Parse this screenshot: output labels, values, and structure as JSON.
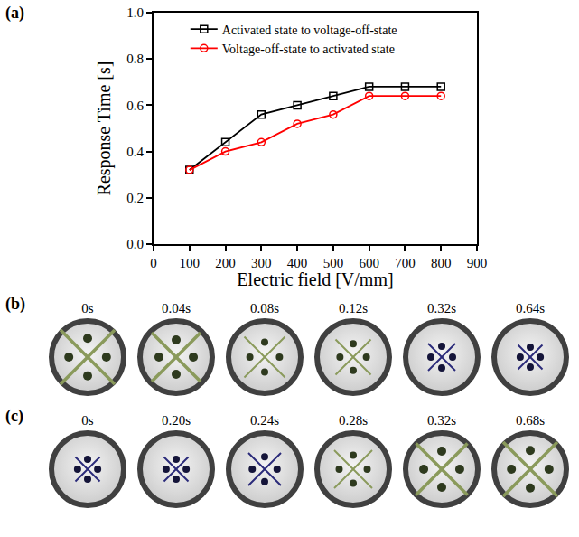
{
  "chart_data": {
    "type": "line",
    "x": [
      100,
      200,
      300,
      400,
      500,
      600,
      700,
      800
    ],
    "series": [
      {
        "name": "Activated state to voltage-off-state",
        "color": "#000000",
        "marker": "square-open",
        "line_style": "solid",
        "values": [
          0.32,
          0.44,
          0.56,
          0.6,
          0.64,
          0.68,
          0.68,
          0.68
        ]
      },
      {
        "name": "Voltage-off-state to activated state",
        "color": "#ff0000",
        "marker": "circle-open",
        "line_style": "solid",
        "values": [
          0.32,
          0.4,
          0.44,
          0.52,
          0.56,
          0.64,
          0.64,
          0.64
        ]
      }
    ],
    "x_label": "Electric field [V/mm]",
    "y_label": "Response Time [s]",
    "xlim": [
      0,
      900
    ],
    "xticks": [
      0,
      100,
      200,
      300,
      400,
      500,
      600,
      700,
      800,
      900
    ],
    "ylim": [
      0,
      1.0
    ],
    "yticks": [
      {
        "value": 0,
        "label": "0.0"
      },
      {
        "value": 0.2,
        "label": "0.2"
      },
      {
        "value": 0.4,
        "label": "0.4"
      },
      {
        "value": 0.6,
        "label": "0.6"
      },
      {
        "value": 0.8,
        "label": "0.8"
      },
      {
        "value": 1.0,
        "label": "1.0"
      }
    ],
    "grid": false,
    "legend": "upper left"
  },
  "chart_label": "(a)",
  "image_sequences": [
    {
      "label": "(b)",
      "times": [
        "0s",
        "0.04s",
        "0.08s",
        "0.12s",
        "0.32s",
        "0.64s"
      ]
    },
    {
      "label": "(c)",
      "times": [
        "0s",
        "0.20s",
        "0.24s",
        "0.28s",
        "0.32s",
        "0.68s"
      ]
    }
  ]
}
